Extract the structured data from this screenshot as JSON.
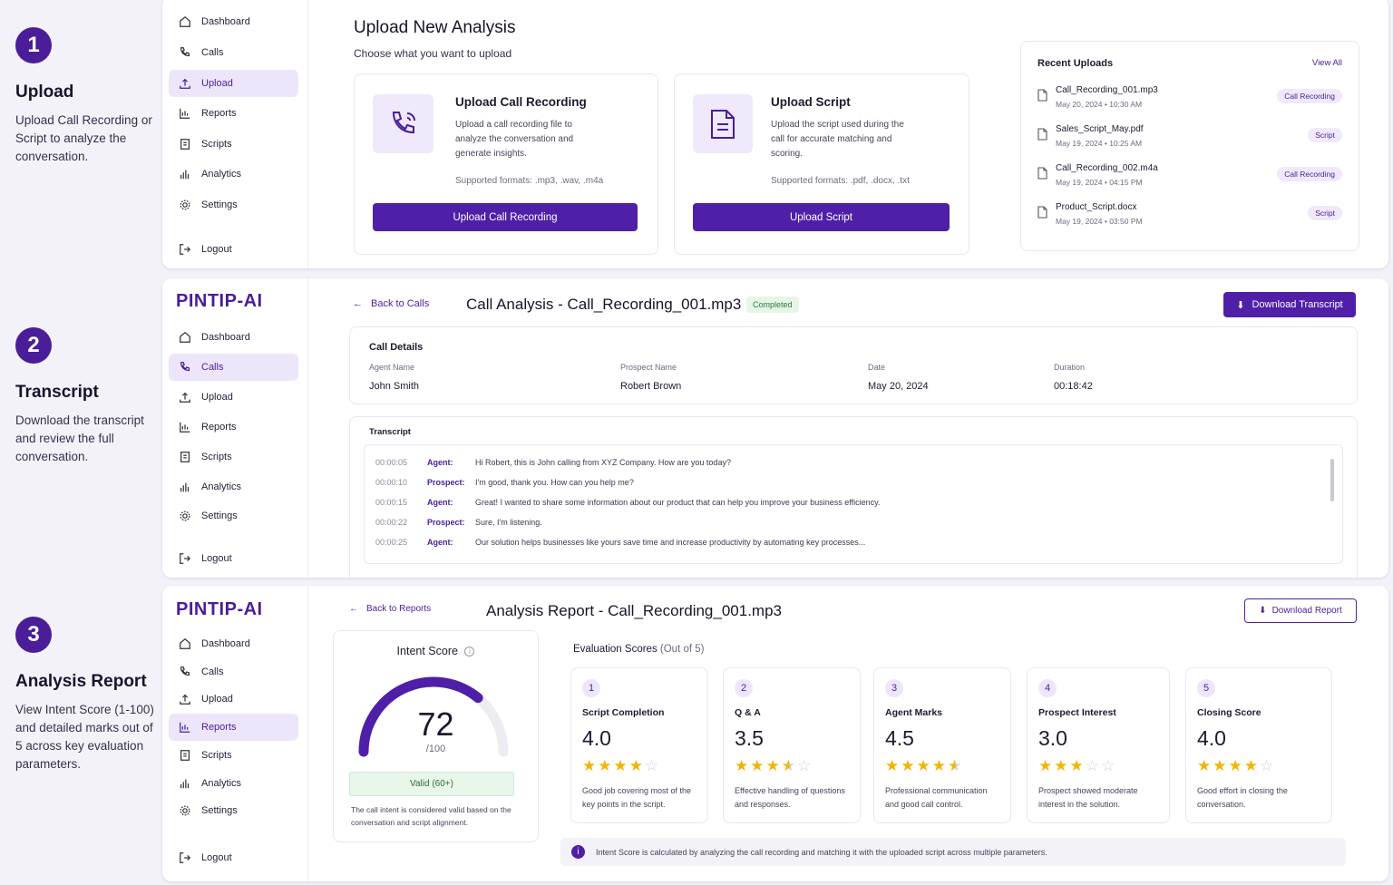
{
  "steps": [
    {
      "num": "1",
      "title": "Upload",
      "desc": "Upload Call Recording or Script to analyze the conversation."
    },
    {
      "num": "2",
      "title": "Transcript",
      "desc": "Download the transcript and review the full conversation."
    },
    {
      "num": "3",
      "title": "Analysis Report",
      "desc": "View Intent Score (1-100) and detailed marks out of 5 across key evaluation parameters."
    }
  ],
  "logo": "PINTIP-AI",
  "nav": {
    "dashboard": "Dashboard",
    "calls": "Calls",
    "upload": "Upload",
    "reports": "Reports",
    "scripts": "Scripts",
    "analytics": "Analytics",
    "settings": "Settings",
    "logout": "Logout"
  },
  "upload": {
    "title": "Upload New Analysis",
    "subtitle": "Choose what you want to upload",
    "call_card": {
      "title": "Upload Call Recording",
      "desc": "Upload a call recording file to analyze the conversation and generate insights.",
      "formats": "Supported formats: .mp3, .wav, .m4a",
      "button": "Upload Call Recording"
    },
    "script_card": {
      "title": "Upload Script",
      "desc": "Upload the script used during the call for accurate matching and scoring.",
      "formats": "Supported formats: .pdf, .docx, .txt",
      "button": "Upload Script"
    },
    "recent": {
      "title": "Recent Uploads",
      "view_all": "View All",
      "items": [
        {
          "name": "Call_Recording_001.mp3",
          "date": "May 20, 2024 • 10:30 AM",
          "tag": "Call Recording"
        },
        {
          "name": "Sales_Script_May.pdf",
          "date": "May 19, 2024 • 10:25 AM",
          "tag": "Script"
        },
        {
          "name": "Call_Recording_002.m4a",
          "date": "May 19, 2024 • 04:15 PM",
          "tag": "Call Recording"
        },
        {
          "name": "Product_Script.docx",
          "date": "May 19, 2024 • 03:50 PM",
          "tag": "Script"
        }
      ]
    }
  },
  "transcript": {
    "back": "Back to Calls",
    "title": "Call Analysis - Call_Recording_001.mp3",
    "status": "Completed",
    "download": "Download Transcript",
    "details_title": "Call Details",
    "details": {
      "agent_label": "Agent Name",
      "agent": "John Smith",
      "prospect_label": "Prospect Name",
      "prospect": "Robert Brown",
      "date_label": "Date",
      "date": "May 20, 2024",
      "duration_label": "Duration",
      "duration": "00:18:42"
    },
    "transcript_title": "Transcript",
    "lines": [
      {
        "time": "00:00:05",
        "speaker": "Agent:",
        "text": "Hi Robert, this is John calling from XYZ Company. How are you today?"
      },
      {
        "time": "00:00:10",
        "speaker": "Prospect:",
        "text": "I'm good, thank you. How can you help me?"
      },
      {
        "time": "00:00:15",
        "speaker": "Agent:",
        "text": "Great! I wanted to share some information about our product that can help you improve your business efficiency."
      },
      {
        "time": "00:00:22",
        "speaker": "Prospect:",
        "text": "Sure, I'm listening."
      },
      {
        "time": "00:00:25",
        "speaker": "Agent:",
        "text": "Our solution helps businesses like yours save time and increase productivity by automating key processes..."
      }
    ]
  },
  "report": {
    "back": "Back to Reports",
    "title": "Analysis Report - Call_Recording_001.mp3",
    "download": "Download Report",
    "intent": {
      "title": "Intent Score",
      "score": 72,
      "max": "/100",
      "badge": "Valid (60+)",
      "note": "The call intent is considered valid based on the conversation and script alignment."
    },
    "eval_title": "Evaluation Scores",
    "eval_sub": "(Out of 5)",
    "scores": [
      {
        "num": "1",
        "name": "Script Completion",
        "value": "4.0",
        "rating": 4.0,
        "desc": "Good job covering most of the key points in the script."
      },
      {
        "num": "2",
        "name": "Q & A",
        "value": "3.5",
        "rating": 3.5,
        "desc": "Effective handling of questions and responses."
      },
      {
        "num": "3",
        "name": "Agent Marks",
        "value": "4.5",
        "rating": 4.5,
        "desc": "Professional communication and good call control."
      },
      {
        "num": "4",
        "name": "Prospect Interest",
        "value": "3.0",
        "rating": 3.0,
        "desc": "Prospect showed moderate interest in the solution."
      },
      {
        "num": "5",
        "name": "Closing Score",
        "value": "4.0",
        "rating": 4.0,
        "desc": "Good effort in closing the conversation."
      }
    ],
    "footnote": "Intent Score is calculated by analyzing the call recording and matching it with the uploaded script across multiple parameters."
  },
  "colors": {
    "accent": "#4f1fa8",
    "star": "#f5b400",
    "valid_bg": "#e8f6ea"
  }
}
